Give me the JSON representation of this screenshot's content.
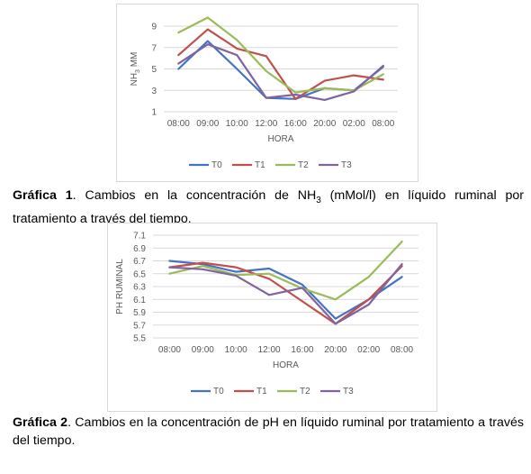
{
  "colors": {
    "T0": "#4472c4",
    "T1": "#c0504d",
    "T2": "#9bbb59",
    "T3": "#8064a2",
    "grid": "#d9d9d9"
  },
  "chart_data": [
    {
      "type": "line",
      "categories": [
        "08:00",
        "09:00",
        "10:00",
        "12:00",
        "16:00",
        "20:00",
        "02:00",
        "08:00"
      ],
      "ylabel_main": "NH",
      "ylabel_sub": "3",
      "ylabel_tail": " MM",
      "xlabel": "HORA",
      "ylim": [
        1,
        9
      ],
      "yticks": [
        1,
        3,
        5,
        7,
        9
      ],
      "grid": true,
      "legend": "bottom",
      "series": [
        {
          "name": "T0",
          "values": [
            5.0,
            7.6,
            5.0,
            2.3,
            2.2,
            3.2,
            3.0,
            5.2
          ]
        },
        {
          "name": "T1",
          "values": [
            6.3,
            8.7,
            6.9,
            6.2,
            2.2,
            3.9,
            4.4,
            4.0
          ]
        },
        {
          "name": "T2",
          "values": [
            8.4,
            9.8,
            7.7,
            4.8,
            2.8,
            3.2,
            3.0,
            4.5
          ]
        },
        {
          "name": "T3",
          "values": [
            5.5,
            7.3,
            6.3,
            2.3,
            2.6,
            2.1,
            2.9,
            5.3
          ]
        }
      ]
    },
    {
      "type": "line",
      "categories": [
        "08:00",
        "09:00",
        "10:00",
        "12:00",
        "16:00",
        "20:00",
        "02:00",
        "08:00"
      ],
      "ylabel_main": "PH RUMINAL",
      "ylabel_sub": "",
      "ylabel_tail": "",
      "xlabel": "HORA",
      "ylim": [
        5.5,
        7.1
      ],
      "yticks": [
        "5.5",
        "5.7",
        "5.9",
        "6.1",
        "6.3",
        "6.5",
        "6.7",
        "6.9",
        "7.1"
      ],
      "grid": true,
      "legend": "bottom",
      "series": [
        {
          "name": "T0",
          "values": [
            6.7,
            6.65,
            6.53,
            6.58,
            6.33,
            5.8,
            6.1,
            6.45
          ]
        },
        {
          "name": "T1",
          "values": [
            6.6,
            6.67,
            6.6,
            6.42,
            6.07,
            5.72,
            6.1,
            6.62
          ]
        },
        {
          "name": "T2",
          "values": [
            6.5,
            6.62,
            6.48,
            6.5,
            6.27,
            6.1,
            6.45,
            7.0
          ]
        },
        {
          "name": "T3",
          "values": [
            6.6,
            6.57,
            6.47,
            6.17,
            6.28,
            5.72,
            6.02,
            6.65
          ]
        }
      ]
    }
  ],
  "captions": [
    {
      "label": "Gráfica 1",
      "pre": ". Cambios en la concentración de NH",
      "sub": "3",
      "post": " (mMol/l) en líquido ruminal por tratamiento a través del tiempo."
    },
    {
      "label": "Gráfica 2",
      "pre": ". Cambios en la concentración de pH en líquido ruminal por tratamiento a través del tiempo.",
      "sub": "",
      "post": ""
    }
  ]
}
